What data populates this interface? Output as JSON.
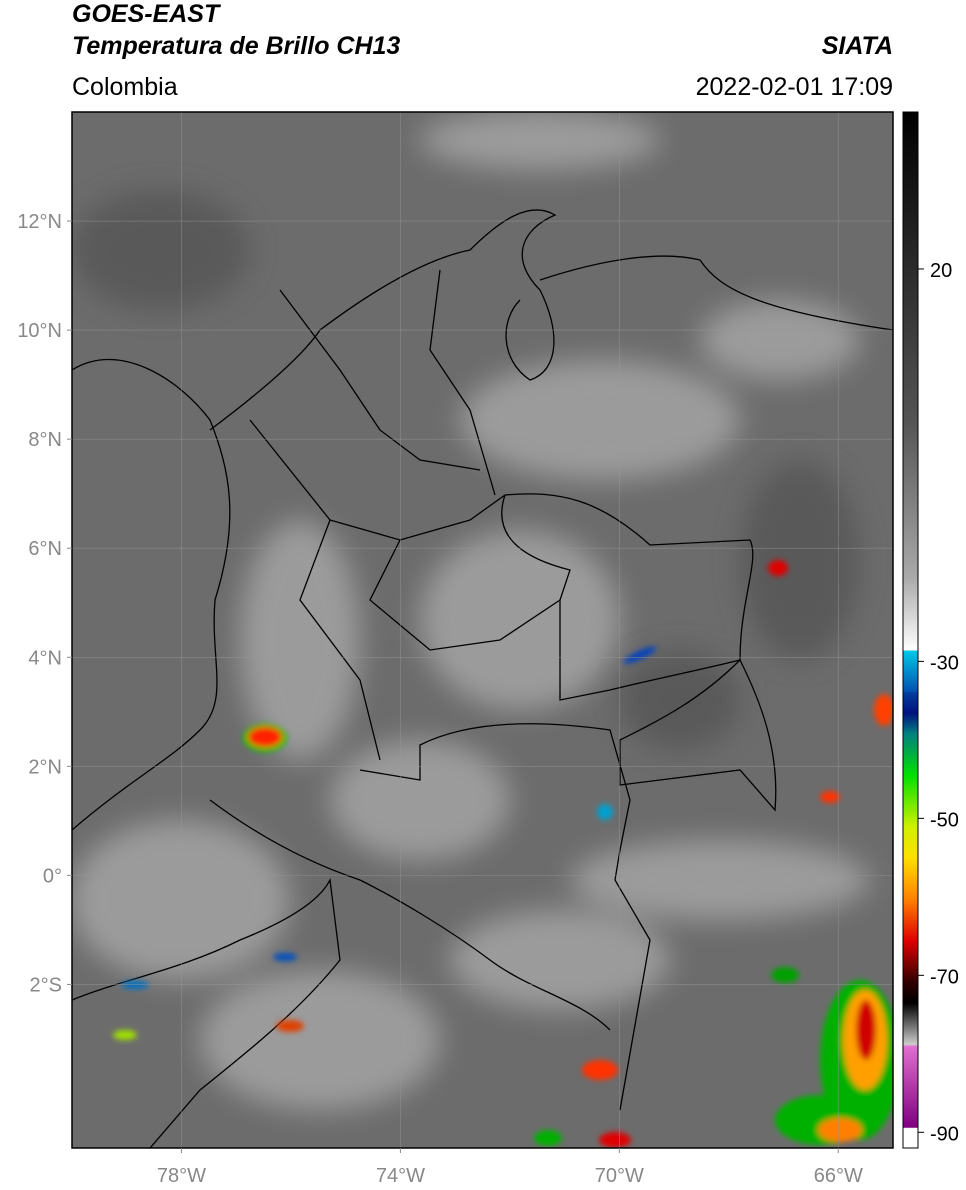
{
  "header": {
    "title": "GOES-EAST",
    "subtitle": "Temperatura de Brillo CH13",
    "region": "Colombia",
    "source": "SIATA",
    "datetime": "2022-02-01 17:09"
  },
  "map": {
    "xlim": [
      -80,
      -65
    ],
    "ylim": [
      -5,
      14
    ],
    "xticks": [
      {
        "value": -78,
        "label": "78°W"
      },
      {
        "value": -74,
        "label": "74°W"
      },
      {
        "value": -70,
        "label": "70°W"
      },
      {
        "value": -66,
        "label": "66°W"
      }
    ],
    "yticks": [
      {
        "value": 12,
        "label": "12°N"
      },
      {
        "value": 10,
        "label": "10°N"
      },
      {
        "value": 8,
        "label": "8°N"
      },
      {
        "value": 6,
        "label": "6°N"
      },
      {
        "value": 4,
        "label": "4°N"
      },
      {
        "value": 2,
        "label": "2°N"
      },
      {
        "value": 0,
        "label": "0°"
      },
      {
        "value": -2,
        "label": "2°S"
      }
    ],
    "grid": true
  },
  "colorbar": {
    "lim": [
      -92,
      40
    ],
    "ticks": [
      20,
      -30,
      -50,
      -70,
      -90
    ]
  }
}
